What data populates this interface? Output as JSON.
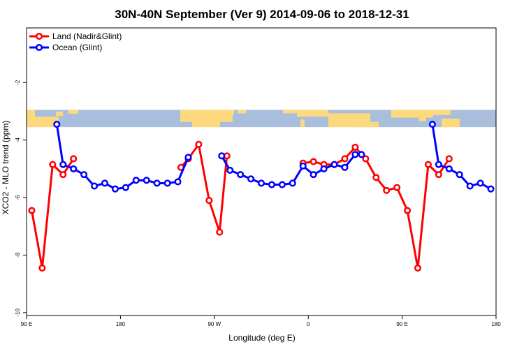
{
  "chart_data": {
    "type": "line",
    "title": "30N-40N September (Ver 9)   2014-09-06 to 2018-12-31",
    "xlabel": "Longitude (deg E)",
    "ylabel": "XCO2 - MLO trend (ppm)",
    "xlim": [
      90,
      540
    ],
    "ylim": [
      -10.1,
      -0.1
    ],
    "x_ticks": [
      {
        "value": 90,
        "label": "90 E"
      },
      {
        "value": 180,
        "label": "180"
      },
      {
        "value": 270,
        "label": "90 W"
      },
      {
        "value": 360,
        "label": "0"
      },
      {
        "value": 450,
        "label": "90 E"
      },
      {
        "value": 540,
        "label": "180"
      }
    ],
    "y_ticks": [
      {
        "value": -2,
        "label": "-2"
      },
      {
        "value": -4,
        "label": "-4"
      },
      {
        "value": -6,
        "label": "-6"
      },
      {
        "value": -8,
        "label": "-8"
      },
      {
        "value": -10,
        "label": "-10"
      }
    ],
    "map_band": {
      "y_top": -2.95,
      "y_bottom": -3.55,
      "ocean_color": "#a8bedc",
      "land_color": "#fcd97c"
    },
    "series": [
      {
        "name": "Land (Nadir&Glint)",
        "color": "#ff0000",
        "segments": [
          [
            [
              95,
              -6.45
            ],
            [
              105,
              -8.45
            ],
            [
              115,
              -4.85
            ],
            [
              125,
              -5.2
            ],
            [
              135,
              -4.65
            ]
          ],
          [
            [
              238,
              -4.95
            ],
            [
              245,
              -4.65
            ],
            [
              255,
              -4.15
            ],
            [
              265,
              -6.1
            ],
            [
              275,
              -7.2
            ],
            [
              282,
              -4.55
            ]
          ],
          [
            [
              355,
              -4.8
            ],
            [
              365,
              -4.75
            ],
            [
              375,
              -4.85
            ],
            [
              385,
              -4.85
            ],
            [
              395,
              -4.65
            ],
            [
              405,
              -4.25
            ],
            [
              415,
              -4.65
            ],
            [
              425,
              -5.3
            ],
            [
              435,
              -5.75
            ],
            [
              445,
              -5.65
            ],
            [
              455,
              -6.45
            ],
            [
              465,
              -8.45
            ],
            [
              475,
              -4.85
            ],
            [
              485,
              -5.2
            ],
            [
              495,
              -4.65
            ]
          ]
        ]
      },
      {
        "name": "Ocean (Glint)",
        "color": "#0000ff",
        "segments": [
          [
            [
              119,
              -3.45
            ],
            [
              125,
              -4.85
            ],
            [
              135,
              -5.0
            ],
            [
              145,
              -5.2
            ],
            [
              155,
              -5.6
            ],
            [
              165,
              -5.5
            ],
            [
              175,
              -5.7
            ],
            [
              185,
              -5.65
            ],
            [
              195,
              -5.4
            ],
            [
              205,
              -5.4
            ],
            [
              215,
              -5.5
            ],
            [
              225,
              -5.5
            ],
            [
              235,
              -5.45
            ],
            [
              245,
              -4.6
            ]
          ],
          [
            [
              277,
              -4.55
            ],
            [
              285,
              -5.05
            ],
            [
              295,
              -5.2
            ],
            [
              305,
              -5.35
            ],
            [
              315,
              -5.5
            ],
            [
              325,
              -5.55
            ],
            [
              335,
              -5.55
            ],
            [
              345,
              -5.5
            ],
            [
              355,
              -4.9
            ],
            [
              365,
              -5.2
            ],
            [
              375,
              -5.0
            ],
            [
              385,
              -4.85
            ],
            [
              395,
              -4.95
            ],
            [
              405,
              -4.5
            ],
            [
              411,
              -4.5
            ]
          ],
          [
            [
              479,
              -3.45
            ],
            [
              485,
              -4.85
            ],
            [
              495,
              -5.0
            ],
            [
              505,
              -5.2
            ],
            [
              515,
              -5.6
            ],
            [
              525,
              -5.5
            ],
            [
              535,
              -5.7
            ]
          ]
        ]
      }
    ],
    "legend_position": "top-left"
  }
}
